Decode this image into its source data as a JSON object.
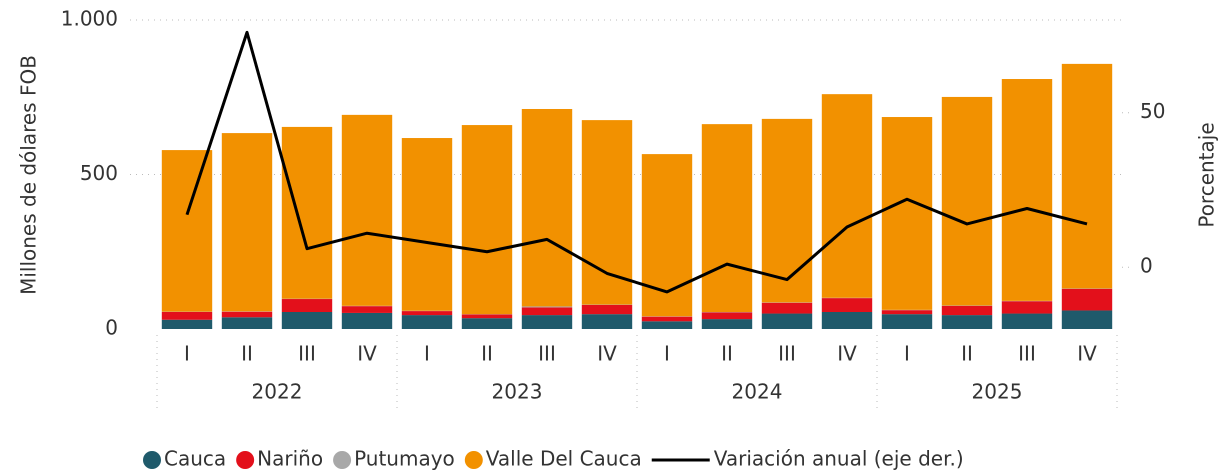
{
  "chart_data": {
    "type": "bar",
    "y_label": "Millones de dólares FOB",
    "y2_label": "Porcentaje",
    "categories": [
      "I",
      "II",
      "III",
      "IV",
      "I",
      "II",
      "III",
      "IV",
      "I",
      "II",
      "III",
      "IV",
      "I",
      "II",
      "III",
      "IV"
    ],
    "groups": [
      "2022",
      "2023",
      "2024",
      "2025"
    ],
    "stacked": true,
    "series": [
      {
        "name": "Cauca",
        "color": "#1f5a6b",
        "values": [
          30,
          38,
          55,
          52,
          45,
          35,
          45,
          48,
          25,
          32,
          50,
          55,
          48,
          45,
          50,
          60
        ]
      },
      {
        "name": "Nariño",
        "color": "#e3101b",
        "values": [
          25,
          18,
          42,
          22,
          13,
          12,
          25,
          30,
          15,
          22,
          35,
          45,
          13,
          30,
          40,
          70
        ]
      },
      {
        "name": "Putumayo",
        "color": "#a8a8a8",
        "values": [
          1,
          1,
          1,
          1,
          1,
          1,
          3,
          1,
          1,
          1,
          1,
          1,
          1,
          1,
          1,
          1
        ]
      },
      {
        "name": "Valle Del Cauca",
        "color": "#f29100",
        "values": [
          523,
          577,
          556,
          618,
          559,
          612,
          639,
          597,
          525,
          608,
          594,
          659,
          624,
          675,
          718,
          727
        ]
      },
      {
        "name": "Variación anual (eje der.)",
        "color": "#000000",
        "type": "line",
        "axis": "y2",
        "values": [
          17,
          76,
          6,
          11,
          8,
          5,
          9,
          -2,
          -8,
          1,
          -4,
          13,
          22,
          14,
          19,
          14
        ]
      }
    ],
    "ylim": [
      0,
      1000
    ],
    "yticks": [
      0,
      500,
      {
        "value": 1000,
        "label": "1.000"
      }
    ],
    "y2lim": [
      -20,
      80
    ],
    "y2ticks": [
      0,
      50
    ],
    "grid": true,
    "legend": "bottom"
  }
}
